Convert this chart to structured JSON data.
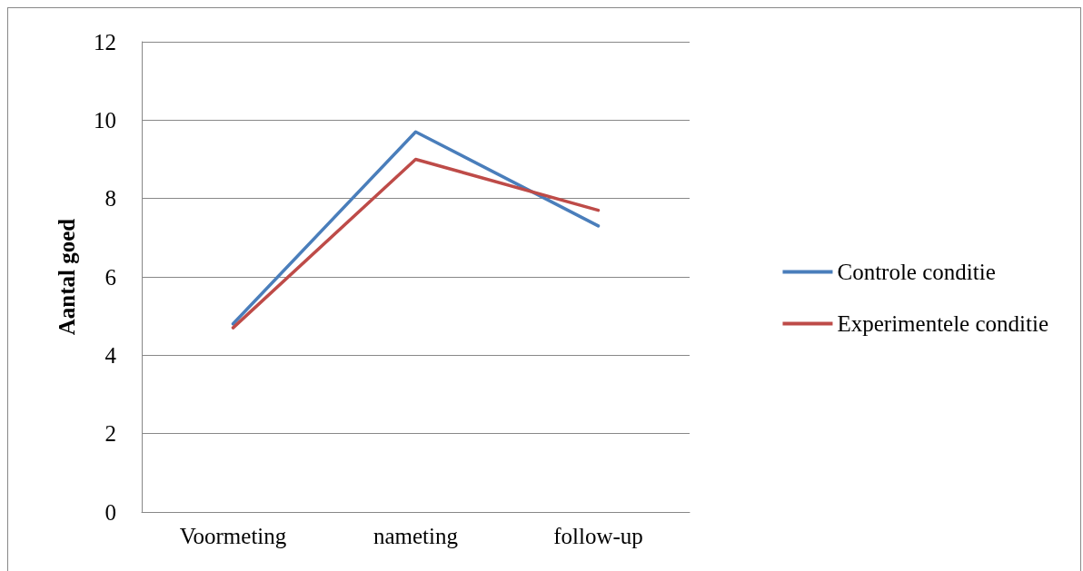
{
  "chart_data": {
    "type": "line",
    "ylabel": "Aantal goed",
    "categories": [
      "Voormeting",
      "nameting",
      "follow-up"
    ],
    "series": [
      {
        "name": "Controle conditie",
        "color": "#4a7ebb",
        "values": [
          4.8,
          9.7,
          7.3
        ]
      },
      {
        "name": "Experimentele conditie",
        "color": "#be4b48",
        "values": [
          4.7,
          9.0,
          7.7
        ]
      }
    ],
    "ylim": [
      0,
      12
    ],
    "yticks": [
      0,
      2,
      4,
      6,
      8,
      10,
      12
    ],
    "grid": "y",
    "legend": "right",
    "marker": "none",
    "line_style": "solid"
  }
}
